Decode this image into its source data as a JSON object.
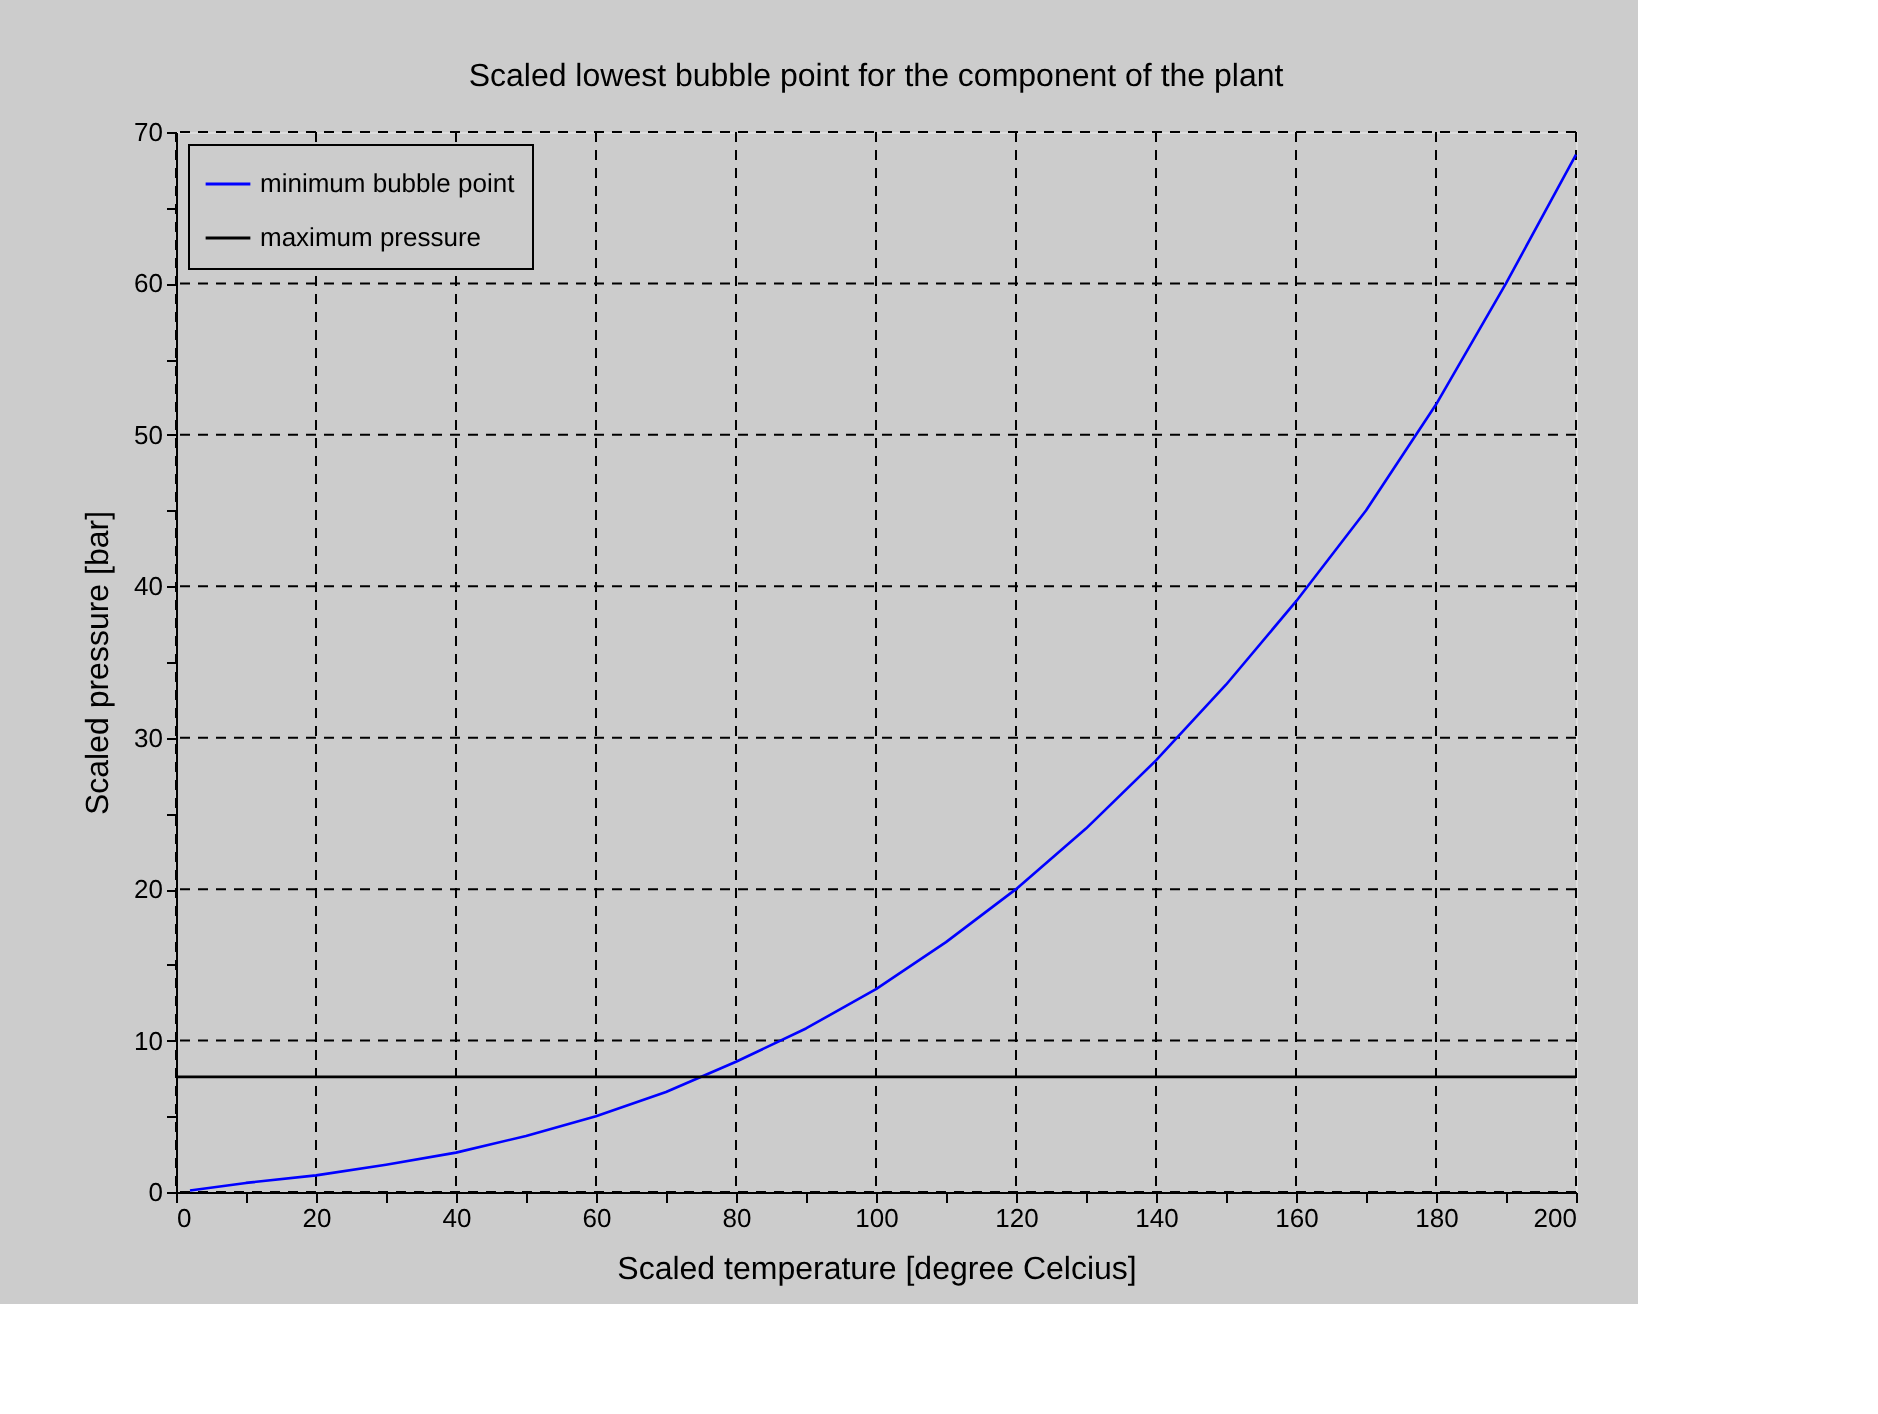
{
  "chart_data": {
    "type": "line",
    "title": "Scaled lowest bubble point for the component of the plant",
    "xlabel": "Scaled temperature [degree Celcius]",
    "ylabel": "Scaled pressure [bar]",
    "xlim": [
      0,
      200
    ],
    "ylim": [
      0,
      70
    ],
    "xticks": [
      0,
      {
        "value": 10,
        "label": null
      },
      20,
      {
        "value": 30,
        "label": null
      },
      40,
      {
        "value": 50,
        "label": null
      },
      60,
      {
        "value": 70,
        "label": null
      },
      80,
      {
        "value": 90,
        "label": null
      },
      100,
      {
        "value": 110,
        "label": null
      },
      120,
      {
        "value": 130,
        "label": null
      },
      140,
      {
        "value": 150,
        "label": null
      },
      160,
      {
        "value": 170,
        "label": null
      },
      180,
      {
        "value": 190,
        "label": null
      },
      200
    ],
    "yticks": [
      0,
      {
        "value": 5,
        "label": null
      },
      10,
      {
        "value": 15,
        "label": null
      },
      20,
      {
        "value": 25,
        "label": null
      },
      30,
      {
        "value": 35,
        "label": null
      },
      40,
      {
        "value": 45,
        "label": null
      },
      50,
      {
        "value": 55,
        "label": null
      },
      60,
      {
        "value": 65,
        "label": null
      },
      70
    ],
    "grid": true,
    "legend": "top left",
    "marker": "none",
    "line_style": "solid",
    "series": [
      {
        "name": "minimum bubble point",
        "color": "#0000ff",
        "x": [
          2,
          10,
          20,
          30,
          40,
          50,
          60,
          70,
          80,
          90,
          100,
          110,
          120,
          130,
          140,
          150,
          160,
          170,
          180,
          190,
          200
        ],
        "values": [
          0.1,
          0.6,
          1.1,
          1.8,
          2.6,
          3.7,
          5.0,
          6.6,
          8.6,
          10.8,
          13.4,
          16.5,
          20.0,
          24.0,
          28.5,
          33.5,
          39.0,
          45.0,
          52.0,
          60.0,
          68.5
        ]
      },
      {
        "name": "maximum pressure",
        "color": "#000000",
        "x": [
          0,
          200
        ],
        "values": [
          7.6,
          7.6
        ]
      }
    ]
  }
}
